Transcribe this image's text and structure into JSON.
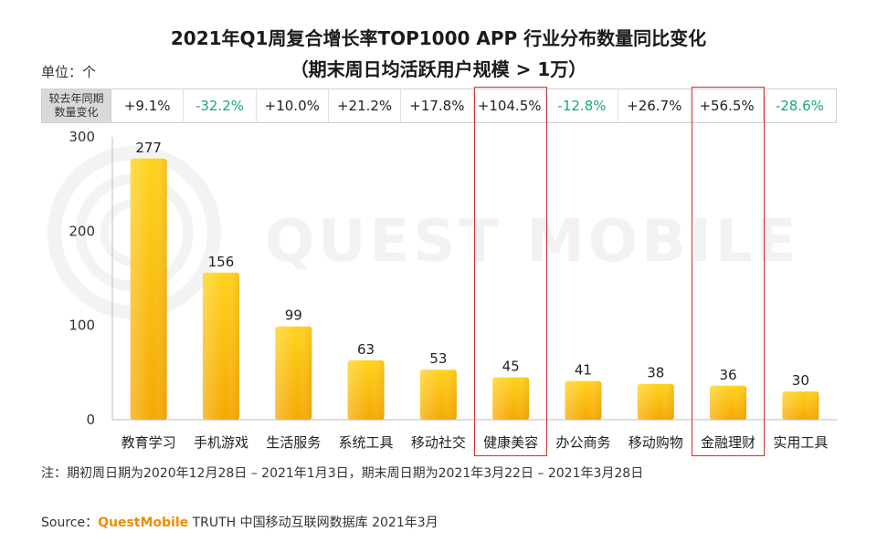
{
  "title_line1": "2021年Q1周复合增长率TOP1000 APP 行业分布数量同比变化",
  "title_line2": "（期末周日均活跃用户规模 > 1万）",
  "unit_label": "单位：个",
  "yoy_label_line1": "较去年同期",
  "yoy_label_line2": "数量变化",
  "watermark": "QUEST MOBILE",
  "note": "注：期初周日期为2020年12月28日 – 2021年1月3日，期末周日期为2021年3月22日 – 2021年3月28日",
  "source_prefix": "Source：",
  "source_brand": "QuestMobile",
  "source_rest": " TRUTH 中国移动互联网数据库 2021年3月",
  "colors": {
    "bar_top": "#ffd21a",
    "bar_bottom": "#f5a800",
    "highlight": "#d32f2f",
    "negative": "#19a874"
  },
  "chart_data": {
    "type": "bar",
    "categories": [
      "教育学习",
      "手机游戏",
      "生活服务",
      "系统工具",
      "移动社交",
      "健康美容",
      "办公商务",
      "移动购物",
      "金融理财",
      "实用工具"
    ],
    "values": [
      277,
      156,
      99,
      63,
      53,
      45,
      41,
      38,
      36,
      30
    ],
    "yoy_change": [
      "+9.1%",
      "-32.2%",
      "+10.0%",
      "+21.2%",
      "+17.8%",
      "+104.5%",
      "-12.8%",
      "+26.7%",
      "+56.5%",
      "-28.6%"
    ],
    "highlighted": [
      "健康美容",
      "金融理财"
    ],
    "yticks": [
      0,
      100,
      200,
      300
    ],
    "ylim": [
      0,
      300
    ],
    "ylabel": "单位：个"
  }
}
